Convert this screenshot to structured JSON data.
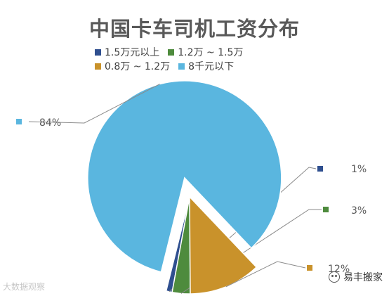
{
  "chart_data": {
    "type": "pie",
    "title": "中国卡车司机工资分布",
    "slices": [
      {
        "label": "1.5万元以上",
        "value": 1,
        "value_label": "1%",
        "color": "#2f4f8f",
        "exploded": false
      },
      {
        "label": "1.2万 ~ 1.5万",
        "value": 3,
        "value_label": "3%",
        "color": "#4e8b3d",
        "exploded": false
      },
      {
        "label": "0.8万 ~ 1.2万",
        "value": 12,
        "value_label": "12%",
        "color": "#c9922b",
        "exploded": false
      },
      {
        "label": "8千元以下",
        "value": 84,
        "value_label": "84%",
        "color": "#5ab6df",
        "exploded": true
      }
    ],
    "legend": {
      "position": "top",
      "rows": [
        [
          0,
          1
        ],
        [
          2,
          3
        ]
      ]
    }
  },
  "watermark": {
    "left_text": "大数据观察",
    "right_text": "易丰搬家"
  }
}
